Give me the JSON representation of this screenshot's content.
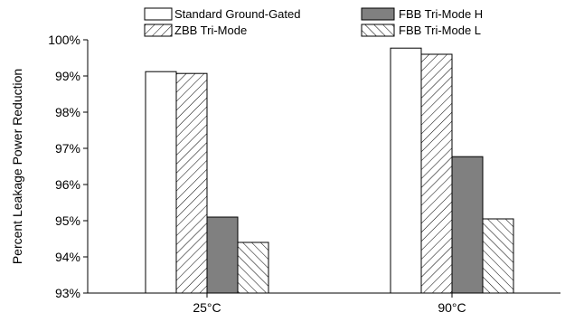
{
  "chart_data": {
    "type": "bar",
    "title": "",
    "xlabel": "",
    "ylabel": "Percent Leakage Power Reduction",
    "ylim": [
      93,
      100
    ],
    "yticks": [
      "93%",
      "94%",
      "95%",
      "96%",
      "97%",
      "98%",
      "99%",
      "100%"
    ],
    "categories": [
      "25°C",
      "90°C"
    ],
    "series": [
      {
        "name": "Standard Ground-Gated",
        "fill": "white",
        "values": [
          99.12,
          99.77
        ]
      },
      {
        "name": "ZBB Tri-Mode",
        "fill": "hatch-forward",
        "values": [
          99.07,
          99.6
        ]
      },
      {
        "name": "FBB Tri-Mode H",
        "fill": "#808080",
        "values": [
          95.1,
          96.77
        ]
      },
      {
        "name": "FBB Tri-Mode L",
        "fill": "hatch-back",
        "values": [
          94.4,
          95.05
        ]
      }
    ],
    "legend_placement": "top",
    "grid": false
  }
}
